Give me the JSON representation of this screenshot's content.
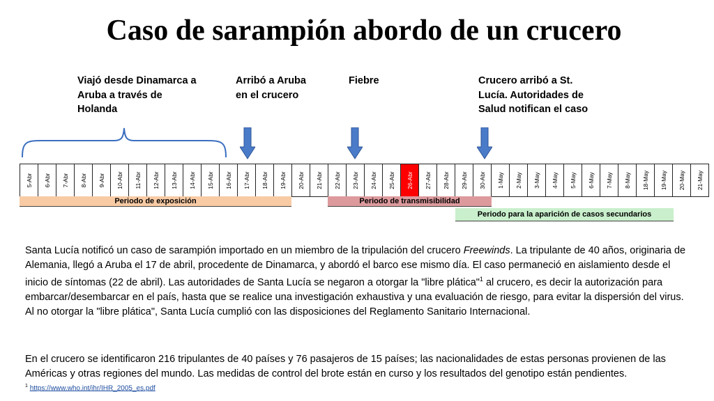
{
  "title": "Caso de sarampión abordo de un crucero",
  "annotations": [
    "Viajó desde Dinamarca a Aruba a través de Holanda",
    "Arribó a Aruba en el crucero",
    "Fiebre",
    "Crucero arribó a St. Lucía. Autoridades de Salud notifican el caso"
  ],
  "timeline": {
    "days": [
      "5-Abr",
      "6-Abr",
      "7-Abr",
      "8-Abr",
      "9-Abr",
      "10-Abr",
      "11-Abr",
      "12-Abr",
      "13-Abr",
      "14-Abr",
      "15-Abr",
      "16-Abr",
      "17-Abr",
      "18-Abr",
      "19-Abr",
      "20-Abr",
      "21-Abr",
      "22-Abr",
      "23-Abr",
      "24-Abr",
      "25-Abr",
      "26-Abr",
      "27-Abr",
      "28-Abr",
      "29-Abr",
      "30-Abr",
      "1-May",
      "2-May",
      "3-May",
      "4-May",
      "5-May",
      "6-May",
      "7-May",
      "8-May",
      "18-May",
      "19-May",
      "20-May",
      "21-May"
    ],
    "highlight_day": "26-Abr",
    "highlight_color": "#ff0000"
  },
  "periods": {
    "exposure": "Periodo de exposición",
    "transmission": "Periodo de transmisibilidad",
    "secondary": "Periodo para la aparición de casos secundarios"
  },
  "colors": {
    "exposure": "#f8cba5",
    "transmission": "#dd9a9d",
    "secondary": "#c9efcc",
    "arrow": "#4a7bc8"
  },
  "paragraph1": {
    "before_ship": "Santa Lucía notificó un caso de sarampión importado en un miembro de la tripulación del crucero ",
    "ship": "Freewinds",
    "after_ship": ". La tripulante de 40 años, originaria de Alemania, llegó a Aruba el 17 de abril, procedente de Dinamarca, y abordó el barco ese mismo día. El caso permaneció en aislamiento desde el inicio de síntomas (22 de abril). Las autoridades de Santa Lucía se negaron a otorgar la \"libre plática\"",
    "footnote_mark": "1",
    " after_mark": "",
    "end": " al crucero, es decir la autorización para embarcar/desembarcar en el país, hasta que se realice una investigación exhaustiva y una evaluación de riesgo, para evitar la dispersión del virus. Al no otorgar la \"libre plática\", Santa Lucía cumplió con las disposiciones del Reglamento Sanitario Internacional."
  },
  "paragraph2": "En el crucero se identificaron 216 tripulantes de 40 países y 76 pasajeros de 15 países; las nacionalidades de estas personas provienen de las Américas y otras regiones del mundo. Las medidas de control del brote están en curso y los resultados del genotipo están pendientes.",
  "footnote": {
    "mark": "1",
    "link": "https://www.who.int/ihr/IHR_2005_es.pdf"
  }
}
